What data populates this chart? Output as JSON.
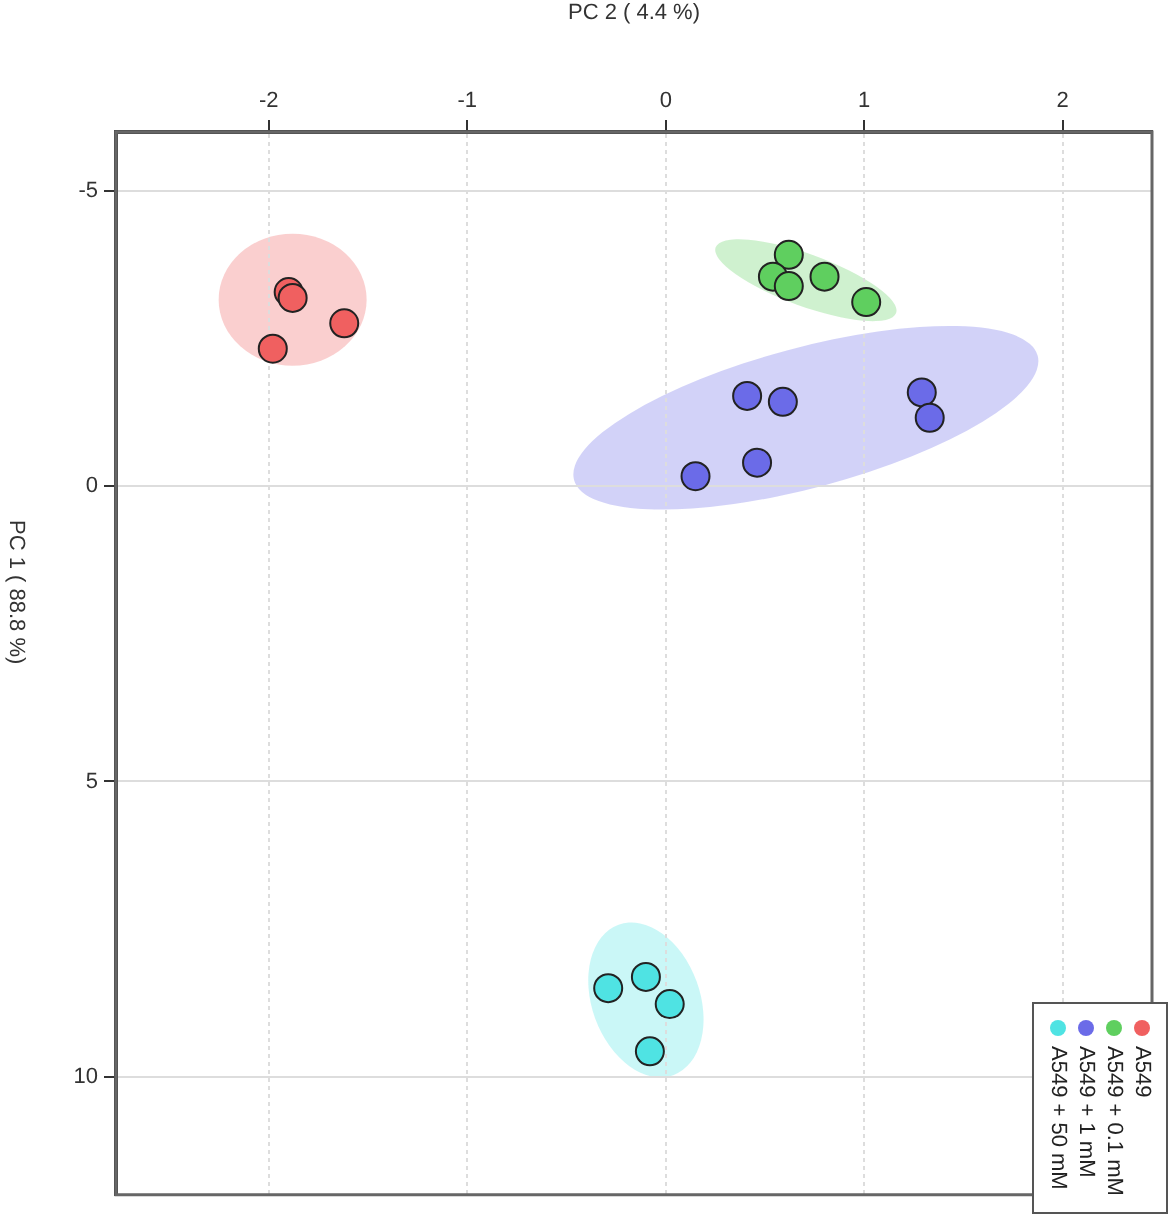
{
  "chart_data": {
    "type": "scatter",
    "xlabel": "PC 2 ( 4.4 %)",
    "ylabel": "PC 1 ( 88.8 %)",
    "xlim": [
      -2.77,
      2.45
    ],
    "xticks": [
      -2,
      -1,
      0,
      1,
      2
    ],
    "ylim": [
      12,
      -6
    ],
    "yticks": [
      -5,
      0,
      5,
      10
    ],
    "grid": true,
    "legend": "bottom right",
    "marker": "circle",
    "series": [
      {
        "name": "A549",
        "color": "#f06060",
        "x": [
          -1.9,
          -1.88,
          -1.62,
          -1.98
        ],
        "values": [
          -3.29,
          -3.19,
          -2.76,
          -2.33
        ]
      },
      {
        "name": "A549 + 0.1 mM",
        "color": "#5fcf5f",
        "x": [
          0.62,
          0.54,
          0.62,
          0.8,
          1.01
        ],
        "values": [
          -3.92,
          -3.55,
          -3.39,
          -3.55,
          -3.12
        ]
      },
      {
        "name": "A549 + 1 mM",
        "color": "#6b6be8",
        "x": [
          0.41,
          0.59,
          0.46,
          0.15,
          1.29,
          1.33
        ],
        "values": [
          -1.53,
          -1.43,
          -0.4,
          -0.17,
          -1.59,
          -1.16
        ]
      },
      {
        "name": "A549 + 50 mM",
        "color": "#4fe3e3",
        "x": [
          -0.29,
          -0.1,
          0.02,
          -0.08
        ],
        "values": [
          8.5,
          8.31,
          8.77,
          9.57
        ]
      }
    ]
  }
}
